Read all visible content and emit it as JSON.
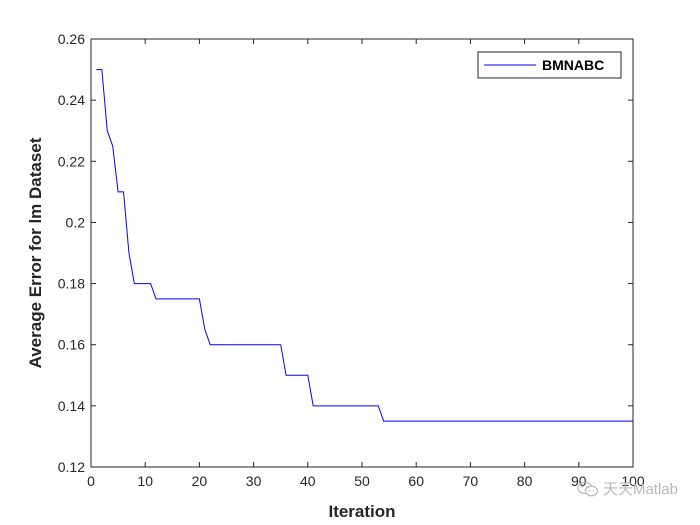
{
  "chart_data": {
    "type": "line",
    "xlabel": "Iteration",
    "ylabel": "Average Error for lm Dataset",
    "xlim": [
      0,
      100
    ],
    "ylim": [
      0.12,
      0.26
    ],
    "xticks": [
      0,
      10,
      20,
      30,
      40,
      50,
      60,
      70,
      80,
      90,
      100
    ],
    "yticks": [
      0.12,
      0.14,
      0.16,
      0.18,
      0.2,
      0.22,
      0.24,
      0.26
    ],
    "ytick_labels": [
      "0.12",
      "0.14",
      "0.16",
      "0.18",
      "0.2",
      "0.22",
      "0.24",
      "0.26"
    ],
    "grid": false,
    "legend_position": "top-right",
    "series": [
      {
        "name": "BMNABC",
        "color": "#0000ff",
        "x": [
          1,
          2,
          3,
          4,
          5,
          6,
          7,
          8,
          9,
          10,
          11,
          12,
          13,
          14,
          15,
          16,
          17,
          18,
          19,
          20,
          21,
          22,
          23,
          24,
          25,
          26,
          27,
          28,
          29,
          30,
          31,
          32,
          33,
          34,
          35,
          36,
          37,
          38,
          39,
          40,
          41,
          42,
          43,
          44,
          45,
          46,
          47,
          48,
          49,
          50,
          51,
          52,
          53,
          54,
          55,
          60,
          70,
          80,
          90,
          100
        ],
        "y": [
          0.25,
          0.25,
          0.23,
          0.225,
          0.21,
          0.21,
          0.19,
          0.18,
          0.18,
          0.18,
          0.18,
          0.175,
          0.175,
          0.175,
          0.175,
          0.175,
          0.175,
          0.175,
          0.175,
          0.175,
          0.165,
          0.16,
          0.16,
          0.16,
          0.16,
          0.16,
          0.16,
          0.16,
          0.16,
          0.16,
          0.16,
          0.16,
          0.16,
          0.16,
          0.16,
          0.15,
          0.15,
          0.15,
          0.15,
          0.15,
          0.14,
          0.14,
          0.14,
          0.14,
          0.14,
          0.14,
          0.14,
          0.14,
          0.14,
          0.14,
          0.14,
          0.14,
          0.14,
          0.135,
          0.135,
          0.135,
          0.135,
          0.135,
          0.135,
          0.135
        ]
      }
    ]
  },
  "watermark": {
    "text": "天天Matlab",
    "icon": "wechat-icon"
  }
}
